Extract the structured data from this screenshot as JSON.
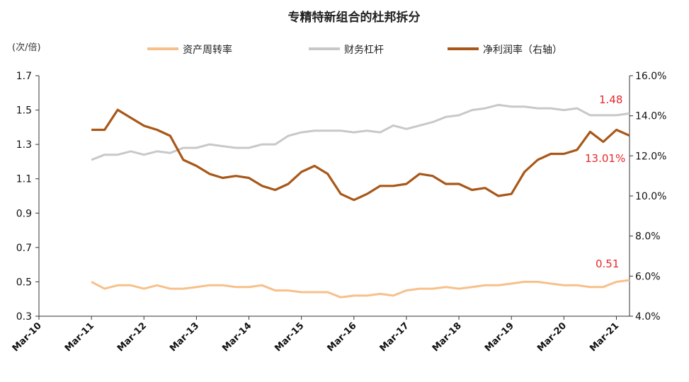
{
  "chart_data": {
    "type": "line",
    "title": "专精特新组合的杜邦拆分",
    "left_axis_unit": "(次/倍)",
    "left_ticks": [
      "0.3",
      "0.5",
      "0.7",
      "0.9",
      "1.1",
      "1.3",
      "1.5",
      "1.7"
    ],
    "right_ticks": [
      "4.0%",
      "6.0%",
      "8.0%",
      "10.0%",
      "12.0%",
      "14.0%",
      "16.0%"
    ],
    "x_ticks": [
      "Mar-10",
      "Mar-11",
      "Mar-12",
      "Mar-13",
      "Mar-14",
      "Mar-15",
      "Mar-16",
      "Mar-17",
      "Mar-18",
      "Mar-19",
      "Mar-20",
      "Mar-21"
    ],
    "ylim_left": [
      0.3,
      1.7
    ],
    "ylim_right": [
      4.0,
      16.0
    ],
    "x_range": [
      2010.0,
      2021.25
    ],
    "grid": false,
    "legend_position": "top",
    "series": [
      {
        "name": "资产周转率",
        "axis": "left",
        "color": "#f7c08a",
        "x": [
          2011.0,
          2011.25,
          2011.5,
          2011.75,
          2012.0,
          2012.25,
          2012.5,
          2012.75,
          2013.0,
          2013.25,
          2013.5,
          2013.75,
          2014.0,
          2014.25,
          2014.5,
          2014.75,
          2015.0,
          2015.25,
          2015.5,
          2015.75,
          2016.0,
          2016.25,
          2016.5,
          2016.75,
          2017.0,
          2017.25,
          2017.5,
          2017.75,
          2018.0,
          2018.25,
          2018.5,
          2018.75,
          2019.0,
          2019.25,
          2019.5,
          2019.75,
          2020.0,
          2020.25,
          2020.5,
          2020.75,
          2021.0,
          2021.25
        ],
        "values": [
          0.5,
          0.46,
          0.48,
          0.48,
          0.46,
          0.48,
          0.46,
          0.46,
          0.47,
          0.48,
          0.48,
          0.47,
          0.47,
          0.48,
          0.45,
          0.45,
          0.44,
          0.44,
          0.44,
          0.41,
          0.42,
          0.42,
          0.43,
          0.42,
          0.45,
          0.46,
          0.46,
          0.47,
          0.46,
          0.47,
          0.48,
          0.48,
          0.49,
          0.5,
          0.5,
          0.49,
          0.48,
          0.48,
          0.47,
          0.47,
          0.5,
          0.51
        ]
      },
      {
        "name": "财务杠杆",
        "axis": "left",
        "color": "#c8c8c8",
        "x": [
          2011.0,
          2011.25,
          2011.5,
          2011.75,
          2012.0,
          2012.25,
          2012.5,
          2012.75,
          2013.0,
          2013.25,
          2013.5,
          2013.75,
          2014.0,
          2014.25,
          2014.5,
          2014.75,
          2015.0,
          2015.25,
          2015.5,
          2015.75,
          2016.0,
          2016.25,
          2016.5,
          2016.75,
          2017.0,
          2017.25,
          2017.5,
          2017.75,
          2018.0,
          2018.25,
          2018.5,
          2018.75,
          2019.0,
          2019.25,
          2019.5,
          2019.75,
          2020.0,
          2020.25,
          2020.5,
          2020.75,
          2021.0,
          2021.25
        ],
        "values": [
          1.21,
          1.24,
          1.24,
          1.26,
          1.24,
          1.26,
          1.25,
          1.28,
          1.28,
          1.3,
          1.29,
          1.28,
          1.28,
          1.3,
          1.3,
          1.35,
          1.37,
          1.38,
          1.38,
          1.38,
          1.37,
          1.38,
          1.37,
          1.41,
          1.39,
          1.41,
          1.43,
          1.46,
          1.47,
          1.5,
          1.51,
          1.53,
          1.52,
          1.52,
          1.51,
          1.51,
          1.5,
          1.51,
          1.47,
          1.47,
          1.47,
          1.48
        ]
      },
      {
        "name": "净利润率（右轴）",
        "axis": "right",
        "color": "#a85718",
        "x": [
          2011.0,
          2011.25,
          2011.5,
          2011.75,
          2012.0,
          2012.25,
          2012.5,
          2012.75,
          2013.0,
          2013.25,
          2013.5,
          2013.75,
          2014.0,
          2014.25,
          2014.5,
          2014.75,
          2015.0,
          2015.25,
          2015.5,
          2015.75,
          2016.0,
          2016.25,
          2016.5,
          2016.75,
          2017.0,
          2017.25,
          2017.5,
          2017.75,
          2018.0,
          2018.25,
          2018.5,
          2018.75,
          2019.0,
          2019.25,
          2019.5,
          2019.75,
          2020.0,
          2020.25,
          2020.5,
          2020.75,
          2021.0,
          2021.25
        ],
        "values": [
          13.3,
          13.3,
          14.3,
          13.9,
          13.5,
          13.3,
          13.0,
          11.8,
          11.5,
          11.1,
          10.9,
          11.0,
          10.9,
          10.5,
          10.3,
          10.6,
          11.2,
          11.5,
          11.1,
          10.1,
          9.8,
          10.1,
          10.5,
          10.5,
          10.6,
          11.1,
          11.0,
          10.6,
          10.6,
          10.3,
          10.4,
          10.0,
          10.1,
          11.2,
          11.8,
          12.1,
          12.1,
          12.3,
          13.2,
          12.7,
          13.3,
          13.01
        ]
      }
    ],
    "annotations": [
      {
        "text": "1.48",
        "series": "财务杠杆"
      },
      {
        "text": "13.01%",
        "series": "净利润率（右轴）"
      },
      {
        "text": "0.51",
        "series": "资产周转率"
      }
    ]
  }
}
